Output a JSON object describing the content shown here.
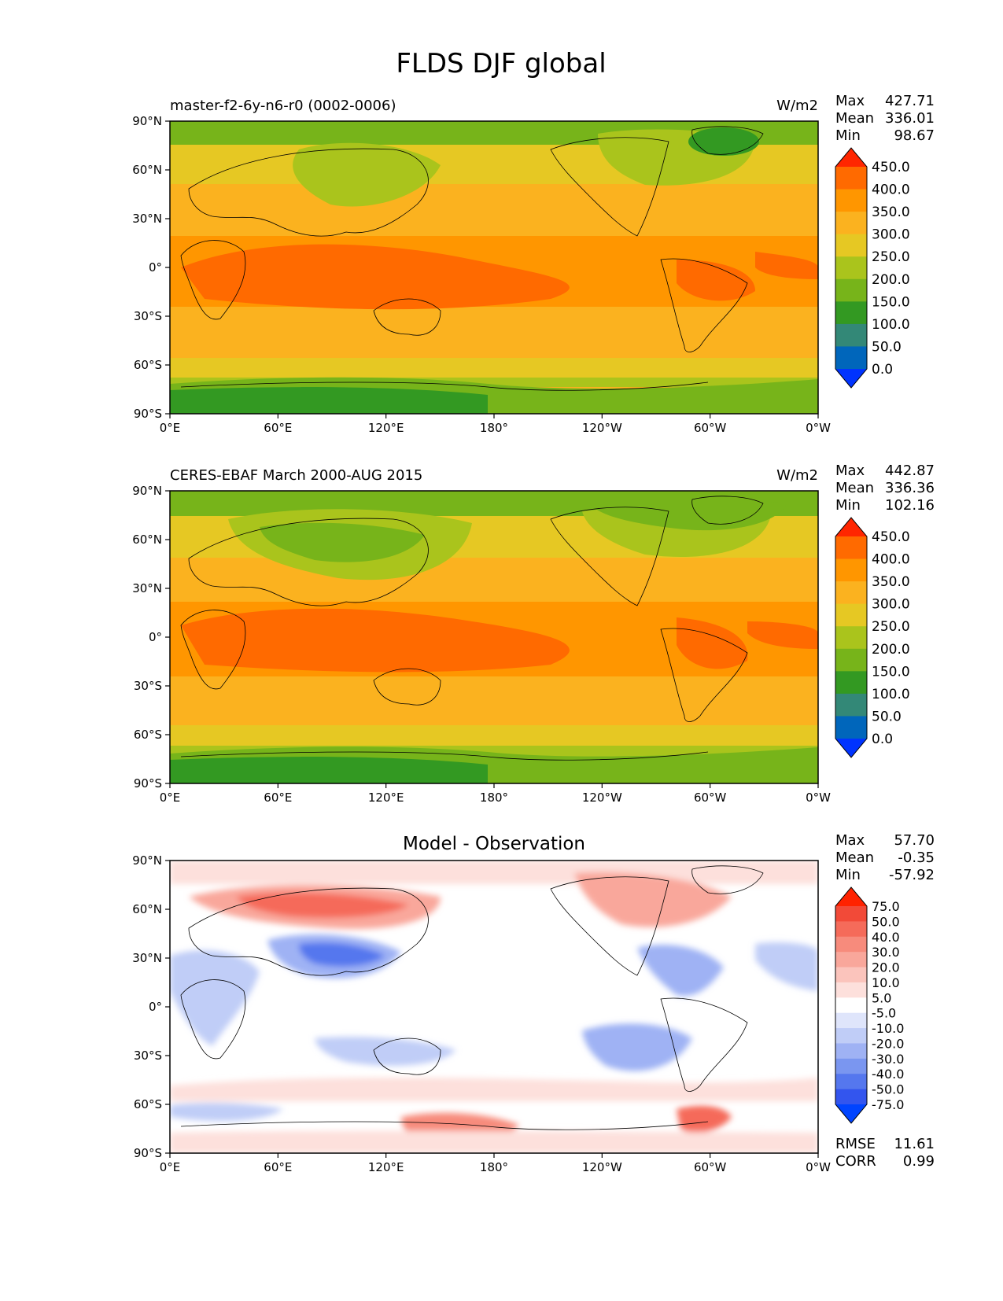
{
  "figure_title": "FLDS DJF global",
  "colors": {
    "flux_levels": [
      "#0033ff",
      "#0066bb",
      "#338877",
      "#339922",
      "#77b41a",
      "#aac41c",
      "#e6c823",
      "#fbb21f",
      "#ff9600",
      "#ff6a00",
      "#ff2600"
    ],
    "diff_levels": [
      "#0044ff",
      "#3355ee",
      "#5577ee",
      "#7a96f0",
      "#9fb2f4",
      "#c0cdf7",
      "#dfe5fb",
      "#ffffff",
      "#fde0dc",
      "#fbc4bc",
      "#f9a79b",
      "#f78b7c",
      "#f56b5a",
      "#f24a38",
      "#ff2200"
    ]
  },
  "chart_data": [
    {
      "type": "heatmap",
      "title": "master-f2-6y-n6-r0 (0002-0006)",
      "units": "W/m2",
      "stats": {
        "max_label": "Max",
        "max": "427.71",
        "mean_label": "Mean",
        "mean": "336.01",
        "min_label": "Min",
        "min": "98.67"
      },
      "x_ticks": [
        "0°E",
        "60°E",
        "120°E",
        "180°",
        "120°W",
        "60°W",
        "0°W"
      ],
      "y_ticks": [
        "90°N",
        "60°N",
        "30°N",
        "0°",
        "30°S",
        "60°S",
        "90°S"
      ],
      "xlim": [
        0,
        360
      ],
      "ylim": [
        -90,
        90
      ],
      "colorbar_levels": [
        "450.0",
        "400.0",
        "350.0",
        "300.0",
        "250.0",
        "200.0",
        "150.0",
        "100.0",
        "50.0",
        "0.0"
      ],
      "colorbar_extend": "both"
    },
    {
      "type": "heatmap",
      "title": "CERES-EBAF March 2000-AUG 2015",
      "units": "W/m2",
      "stats": {
        "max_label": "Max",
        "max": "442.87",
        "mean_label": "Mean",
        "mean": "336.36",
        "min_label": "Min",
        "min": "102.16"
      },
      "x_ticks": [
        "0°E",
        "60°E",
        "120°E",
        "180°",
        "120°W",
        "60°W",
        "0°W"
      ],
      "y_ticks": [
        "90°N",
        "60°N",
        "30°N",
        "0°",
        "30°S",
        "60°S",
        "90°S"
      ],
      "xlim": [
        0,
        360
      ],
      "ylim": [
        -90,
        90
      ],
      "colorbar_levels": [
        "450.0",
        "400.0",
        "350.0",
        "300.0",
        "250.0",
        "200.0",
        "150.0",
        "100.0",
        "50.0",
        "0.0"
      ],
      "colorbar_extend": "both"
    },
    {
      "type": "heatmap",
      "title": "Model - Observation",
      "stats": {
        "max_label": "Max",
        "max": "57.70",
        "mean_label": "Mean",
        "mean": "-0.35",
        "min_label": "Min",
        "min": "-57.92"
      },
      "metrics": {
        "rmse_label": "RMSE",
        "rmse": "11.61",
        "corr_label": "CORR",
        "corr": "0.99"
      },
      "x_ticks": [
        "0°E",
        "60°E",
        "120°E",
        "180°",
        "120°W",
        "60°W",
        "0°W"
      ],
      "y_ticks": [
        "90°N",
        "60°N",
        "30°N",
        "0°",
        "30°S",
        "60°S",
        "90°S"
      ],
      "xlim": [
        0,
        360
      ],
      "ylim": [
        -90,
        90
      ],
      "colorbar_levels": [
        "75.0",
        "50.0",
        "40.0",
        "30.0",
        "20.0",
        "10.0",
        "5.0",
        "-5.0",
        "-10.0",
        "-20.0",
        "-30.0",
        "-40.0",
        "-50.0",
        "-75.0"
      ],
      "colorbar_extend": "both"
    }
  ]
}
